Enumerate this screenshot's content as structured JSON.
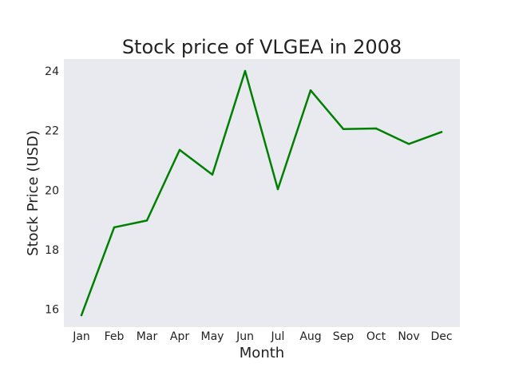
{
  "chart_data": {
    "type": "line",
    "title": "Stock price of VLGEA in 2008",
    "xlabel": "Month",
    "ylabel": "Stock Price (USD)",
    "categories": [
      "Jan",
      "Feb",
      "Mar",
      "Apr",
      "May",
      "Jun",
      "Jul",
      "Aug",
      "Sep",
      "Oct",
      "Nov",
      "Dec"
    ],
    "series": [
      {
        "values": [
          15.8,
          18.75,
          18.98,
          21.35,
          20.52,
          24.0,
          20.03,
          23.35,
          22.05,
          22.07,
          21.55,
          21.95
        ]
      }
    ],
    "yticks": [
      16,
      18,
      20,
      22,
      24
    ],
    "ylim": [
      15.4,
      24.4
    ],
    "grid": false,
    "legend": "none",
    "colors": {
      "line": "#008000",
      "plot_background": "#e9e9f0"
    }
  }
}
